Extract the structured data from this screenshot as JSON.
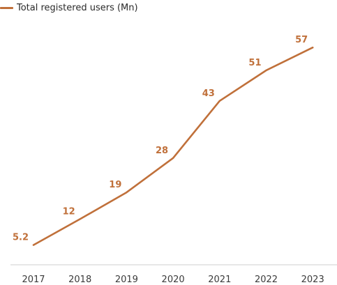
{
  "colors": {
    "series": "#c0703a",
    "axis": "#cfcfcf"
  },
  "chart_data": {
    "type": "line",
    "title": "",
    "xlabel": "",
    "ylabel": "",
    "grid": false,
    "legend_position": "top-left",
    "categories": [
      "2017",
      "2018",
      "2019",
      "2020",
      "2021",
      "2022",
      "2023"
    ],
    "ylim": [
      0,
      62
    ],
    "series": [
      {
        "name": "Total registered users (Mn)",
        "values": [
          5.2,
          12,
          19,
          28,
          43,
          51,
          57
        ],
        "labels": [
          "5.2",
          "12",
          "19",
          "28",
          "43",
          "51",
          "57"
        ]
      }
    ]
  }
}
